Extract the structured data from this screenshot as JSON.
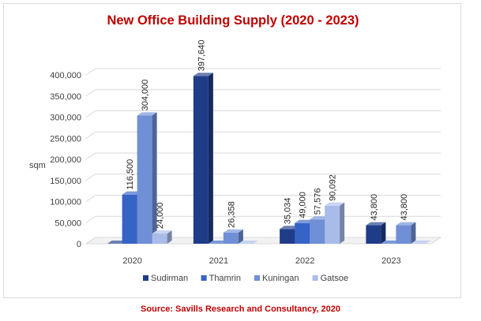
{
  "chart_data": {
    "type": "bar",
    "title": "New Office Building Supply (2020 - 2023)",
    "ylabel": "sqm",
    "xlabel": "",
    "categories": [
      "2020",
      "2021",
      "2022",
      "2023"
    ],
    "ylim": [
      0,
      400000
    ],
    "yticks": [
      "0",
      "50,000",
      "100,000",
      "150,000",
      "200,000",
      "250,000",
      "300,000",
      "350,000",
      "400,000"
    ],
    "series": [
      {
        "name": "Sudirman",
        "color": "#1f3c88",
        "values": [
          0,
          397640,
          35034,
          43800
        ],
        "labels": [
          "",
          "397,640",
          "35,034",
          "43,800"
        ]
      },
      {
        "name": "Thamrin",
        "color": "#3563c6",
        "values": [
          116500,
          0,
          49000,
          0
        ],
        "labels": [
          "116,500",
          "",
          "49,000",
          ""
        ]
      },
      {
        "name": "Kuningan",
        "color": "#6f8fd6",
        "values": [
          304000,
          26358,
          57576,
          43800
        ],
        "labels": [
          "304,000",
          "26,358",
          "57,576",
          "43,800"
        ]
      },
      {
        "name": "Gatsoe",
        "color": "#a9bce9",
        "values": [
          24000,
          0,
          90092,
          0
        ],
        "labels": [
          "24,000",
          "",
          "90,092",
          ""
        ]
      }
    ],
    "legend_position": "bottom",
    "grid": true,
    "chart_type_detail": "3-D clustered column"
  },
  "source": "Source: Savills Research and Consultancy, 2020"
}
